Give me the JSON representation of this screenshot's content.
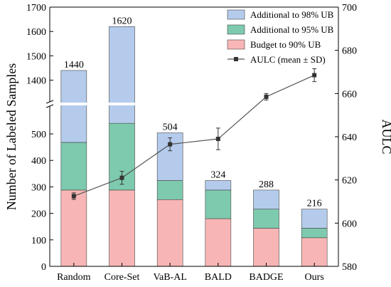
{
  "chart_data": {
    "type": "bar",
    "categories": [
      "Random",
      "Core-Set",
      "VaB-AL",
      "BALD",
      "BADGE",
      "Ours"
    ],
    "series": [
      {
        "name": "Budget to 90% UB",
        "values": [
          288,
          288,
          252,
          180,
          144,
          108
        ],
        "color": "#f7b6b5"
      },
      {
        "name": "Additional to 95% UB",
        "values": [
          180,
          252,
          72,
          108,
          72,
          36
        ],
        "color": "#7ecaae"
      },
      {
        "name": "Additional to 98% UB",
        "values": [
          972,
          1080,
          180,
          36,
          72,
          72
        ],
        "color": "#b4cbec"
      }
    ],
    "totals": [
      1440,
      1620,
      504,
      324,
      288,
      216
    ],
    "line_series": {
      "name": "AULC (mean ± SD)",
      "values": [
        612.5,
        621.0,
        636.5,
        639.0,
        658.5,
        668.5
      ],
      "sd": [
        1.5,
        3.0,
        3.0,
        5.0,
        1.5,
        3.0
      ],
      "color": "#555555"
    },
    "ylabel": "Number of Labeled Samples",
    "y2label": "AULC",
    "y_lower_ticks": [
      0,
      100,
      200,
      300,
      400,
      500
    ],
    "y_upper_ticks": [
      1400,
      1500,
      1600,
      1700
    ],
    "y2_ticks": [
      580,
      600,
      620,
      640,
      660,
      680,
      700
    ],
    "y_lower_range": [
      0,
      570
    ],
    "y_upper_range": [
      1355,
      1700
    ],
    "y2_range": [
      580,
      700
    ],
    "axis_break": true,
    "legend_position": "top-right",
    "grid": false
  }
}
